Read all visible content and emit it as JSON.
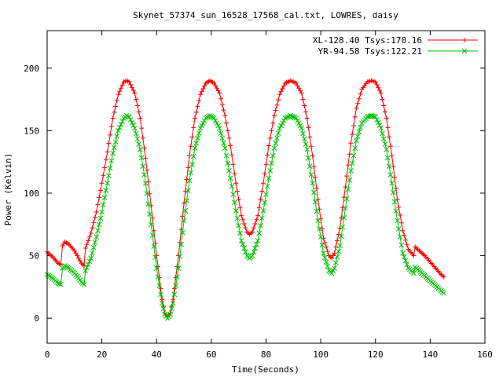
{
  "chart_data": {
    "type": "line",
    "title": "Skynet_57374_sun_16528_17568_cal.txt, LOWRES, daisy",
    "xlabel": "Time(Seconds)",
    "ylabel": "Power (Kelvin)",
    "xlim": [
      0,
      160
    ],
    "ylim": [
      -20,
      230
    ],
    "xticks": [
      0,
      20,
      40,
      60,
      80,
      100,
      120,
      140,
      160
    ],
    "yticks": [
      0,
      50,
      100,
      150,
      200
    ],
    "grid": false,
    "legend_position": "top-right",
    "series": [
      {
        "name": "XL-128.40 Tsys:170.16",
        "color": "#ff0000",
        "marker": "plus",
        "points": [
          [
            0,
            53
          ],
          [
            2,
            49
          ],
          [
            4,
            44
          ],
          [
            5,
            43
          ],
          [
            5.6,
            58
          ],
          [
            6.5,
            61
          ],
          [
            8,
            59
          ],
          [
            10,
            54
          ],
          [
            11.5,
            48
          ],
          [
            12.5,
            44
          ],
          [
            13.5,
            42
          ],
          [
            14,
            56
          ],
          [
            16,
            68
          ],
          [
            18,
            85
          ],
          [
            20,
            108
          ],
          [
            22,
            133
          ],
          [
            24,
            160
          ],
          [
            26,
            179
          ],
          [
            28,
            189
          ],
          [
            29,
            190
          ],
          [
            30,
            189
          ],
          [
            32,
            180
          ],
          [
            34,
            160
          ],
          [
            36,
            128
          ],
          [
            38,
            90
          ],
          [
            40,
            50
          ],
          [
            42,
            15
          ],
          [
            43,
            4
          ],
          [
            44,
            1
          ],
          [
            45,
            4
          ],
          [
            46,
            15
          ],
          [
            48,
            50
          ],
          [
            50,
            92
          ],
          [
            52,
            130
          ],
          [
            54,
            160
          ],
          [
            56,
            179
          ],
          [
            58,
            188
          ],
          [
            59.5,
            190
          ],
          [
            61,
            188
          ],
          [
            63,
            180
          ],
          [
            65,
            162
          ],
          [
            67,
            138
          ],
          [
            69,
            108
          ],
          [
            71,
            82
          ],
          [
            73,
            69
          ],
          [
            74,
            67
          ],
          [
            75,
            69
          ],
          [
            77,
            82
          ],
          [
            79,
            108
          ],
          [
            81,
            138
          ],
          [
            83,
            162
          ],
          [
            85,
            179
          ],
          [
            87,
            188
          ],
          [
            89,
            190
          ],
          [
            91,
            188
          ],
          [
            93,
            180
          ],
          [
            95,
            160
          ],
          [
            97,
            130
          ],
          [
            99,
            95
          ],
          [
            101,
            64
          ],
          [
            103,
            50
          ],
          [
            104,
            48
          ],
          [
            105,
            52
          ],
          [
            107,
            72
          ],
          [
            109,
            105
          ],
          [
            111,
            140
          ],
          [
            113,
            168
          ],
          [
            115,
            183
          ],
          [
            117,
            189
          ],
          [
            118.5,
            190
          ],
          [
            120,
            189
          ],
          [
            122,
            180
          ],
          [
            124,
            160
          ],
          [
            126,
            130
          ],
          [
            128,
            95
          ],
          [
            130,
            70
          ],
          [
            132,
            55
          ],
          [
            134,
            50
          ],
          [
            134.5,
            57
          ],
          [
            136,
            54
          ],
          [
            138,
            50
          ],
          [
            140,
            45
          ],
          [
            142,
            40
          ],
          [
            144,
            35
          ],
          [
            145,
            33
          ]
        ]
      },
      {
        "name": "YR-94.58 Tsys:122.21",
        "color": "#00c000",
        "marker": "cross",
        "points": [
          [
            0,
            35
          ],
          [
            2,
            32
          ],
          [
            4,
            28
          ],
          [
            5,
            27
          ],
          [
            5.6,
            40
          ],
          [
            6.5,
            42
          ],
          [
            8,
            40
          ],
          [
            10,
            36
          ],
          [
            11.5,
            32
          ],
          [
            12.5,
            29
          ],
          [
            13.5,
            27
          ],
          [
            14,
            38
          ],
          [
            16,
            48
          ],
          [
            18,
            65
          ],
          [
            20,
            85
          ],
          [
            22,
            108
          ],
          [
            24,
            132
          ],
          [
            26,
            150
          ],
          [
            28,
            160
          ],
          [
            29,
            162
          ],
          [
            30,
            161
          ],
          [
            32,
            152
          ],
          [
            34,
            135
          ],
          [
            36,
            108
          ],
          [
            38,
            75
          ],
          [
            40,
            40
          ],
          [
            42,
            12
          ],
          [
            43,
            3
          ],
          [
            44,
            0
          ],
          [
            45,
            3
          ],
          [
            46,
            12
          ],
          [
            48,
            40
          ],
          [
            50,
            78
          ],
          [
            52,
            110
          ],
          [
            54,
            136
          ],
          [
            56,
            152
          ],
          [
            58,
            160
          ],
          [
            59.5,
            162
          ],
          [
            61,
            160
          ],
          [
            63,
            152
          ],
          [
            65,
            136
          ],
          [
            67,
            112
          ],
          [
            69,
            86
          ],
          [
            71,
            62
          ],
          [
            73,
            50
          ],
          [
            74,
            48
          ],
          [
            75,
            50
          ],
          [
            77,
            62
          ],
          [
            79,
            86
          ],
          [
            81,
            112
          ],
          [
            83,
            136
          ],
          [
            85,
            152
          ],
          [
            87,
            160
          ],
          [
            89,
            162
          ],
          [
            91,
            160
          ],
          [
            93,
            152
          ],
          [
            95,
            135
          ],
          [
            97,
            108
          ],
          [
            99,
            78
          ],
          [
            101,
            52
          ],
          [
            103,
            38
          ],
          [
            104,
            36
          ],
          [
            105,
            40
          ],
          [
            107,
            58
          ],
          [
            109,
            88
          ],
          [
            111,
            118
          ],
          [
            113,
            142
          ],
          [
            115,
            156
          ],
          [
            117,
            161
          ],
          [
            118.5,
            162
          ],
          [
            120,
            161
          ],
          [
            122,
            152
          ],
          [
            124,
            135
          ],
          [
            126,
            108
          ],
          [
            128,
            78
          ],
          [
            130,
            52
          ],
          [
            132,
            40
          ],
          [
            134,
            36
          ],
          [
            134.5,
            41
          ],
          [
            136,
            38
          ],
          [
            138,
            34
          ],
          [
            140,
            30
          ],
          [
            142,
            26
          ],
          [
            144,
            22
          ],
          [
            145,
            20
          ]
        ]
      }
    ]
  }
}
